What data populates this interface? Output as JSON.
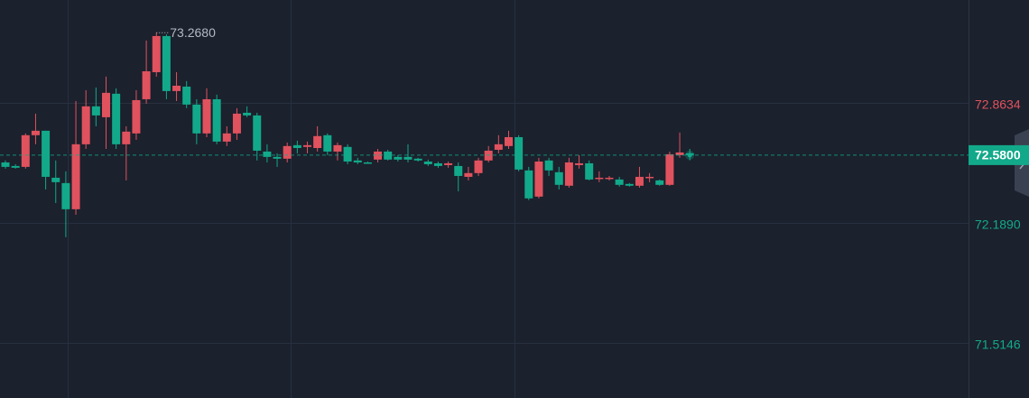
{
  "chart_data": {
    "type": "candlestick",
    "open": [
      72.539,
      72.519,
      72.514,
      72.692,
      72.717,
      72.453,
      72.423,
      72.276,
      72.641,
      72.854,
      72.793,
      72.925,
      72.641,
      72.702,
      72.894,
      73.046,
      73.249,
      72.94,
      72.965,
      72.864,
      72.702,
      72.894,
      72.656,
      72.702,
      72.818,
      72.803,
      72.6,
      72.57,
      72.56,
      72.636,
      72.626,
      72.62,
      72.692,
      72.6,
      72.626,
      72.55,
      72.539,
      72.555,
      72.6,
      72.57,
      72.57,
      72.56,
      72.544,
      72.534,
      72.524,
      72.519,
      72.458,
      72.479,
      72.55,
      72.61,
      72.631,
      72.681,
      72.494,
      72.347,
      72.55,
      72.484,
      72.408,
      72.524,
      72.534,
      72.448,
      72.448,
      72.443,
      72.418,
      72.408,
      72.453,
      72.438,
      72.413,
      72.58,
      72.59
    ],
    "high": [
      72.55,
      72.529,
      72.702,
      72.813,
      72.717,
      72.55,
      72.489,
      72.884,
      72.945,
      72.96,
      73.021,
      72.955,
      72.742,
      72.945,
      73.224,
      73.268,
      73.259,
      73.046,
      72.996,
      72.894,
      72.955,
      72.92,
      72.742,
      72.844,
      72.854,
      72.818,
      72.641,
      72.59,
      72.651,
      72.661,
      72.656,
      72.742,
      72.702,
      72.651,
      72.641,
      72.565,
      72.544,
      72.615,
      72.61,
      72.58,
      72.641,
      72.565,
      72.555,
      72.544,
      72.544,
      72.539,
      72.514,
      72.565,
      72.631,
      72.692,
      72.717,
      72.692,
      72.514,
      72.565,
      72.565,
      72.514,
      72.565,
      72.58,
      72.55,
      72.489,
      72.463,
      72.458,
      72.423,
      72.514,
      72.479,
      72.443,
      72.6,
      72.707,
      72.615
    ],
    "low": [
      72.504,
      72.504,
      72.504,
      72.641,
      72.387,
      72.311,
      72.119,
      72.245,
      72.615,
      72.742,
      72.615,
      72.615,
      72.438,
      72.666,
      72.869,
      73.021,
      72.894,
      72.884,
      72.844,
      72.641,
      72.681,
      72.641,
      72.631,
      72.666,
      72.793,
      72.55,
      72.539,
      72.514,
      72.539,
      72.59,
      72.59,
      72.6,
      72.58,
      72.55,
      72.529,
      72.529,
      72.534,
      72.539,
      72.55,
      72.544,
      72.539,
      72.544,
      72.519,
      72.509,
      72.509,
      72.377,
      72.438,
      72.463,
      72.539,
      72.59,
      72.615,
      72.489,
      72.327,
      72.337,
      72.463,
      72.387,
      72.397,
      72.504,
      72.438,
      72.428,
      72.438,
      72.403,
      72.403,
      72.397,
      72.428,
      72.408,
      72.408,
      72.565,
      72.551
    ],
    "close": [
      72.514,
      72.509,
      72.692,
      72.717,
      72.458,
      72.428,
      72.276,
      72.641,
      72.854,
      72.803,
      72.93,
      72.641,
      72.712,
      72.889,
      73.051,
      73.249,
      72.94,
      72.97,
      72.864,
      72.702,
      72.894,
      72.656,
      72.702,
      72.813,
      72.803,
      72.605,
      72.57,
      72.56,
      72.631,
      72.62,
      72.636,
      72.687,
      72.6,
      72.636,
      72.544,
      72.539,
      72.534,
      72.6,
      72.555,
      72.555,
      72.555,
      72.55,
      72.529,
      72.519,
      72.534,
      72.463,
      72.479,
      72.55,
      72.605,
      72.641,
      72.681,
      72.499,
      72.337,
      72.544,
      72.494,
      72.413,
      72.539,
      72.534,
      72.443,
      72.453,
      72.453,
      72.413,
      72.408,
      72.458,
      72.458,
      72.413,
      72.585,
      72.595,
      72.58
    ],
    "up_color": "#e0525e",
    "down_color": "#12a98a",
    "ylim": [
      71.2154,
      73.4516
    ],
    "yticks": [
      72.8634,
      {
        "value": 72.189,
        "label": "72.1890"
      },
      71.5146
    ],
    "grid": true,
    "last_price": {
      "value": 72.58,
      "label": "72.5800"
    },
    "high_annotation": {
      "value": 73.268,
      "label": "73.2680"
    }
  }
}
